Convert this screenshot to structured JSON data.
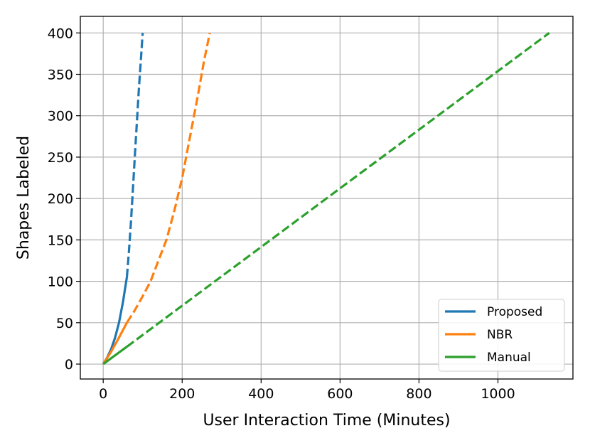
{
  "chart_data": {
    "type": "line",
    "xlabel": "User Interaction Time (Minutes)",
    "ylabel": "Shapes Labeled",
    "xlim": [
      -58,
      1190
    ],
    "ylim": [
      -18,
      420
    ],
    "xticks": [
      0,
      200,
      400,
      600,
      800,
      1000
    ],
    "yticks": [
      0,
      50,
      100,
      150,
      200,
      250,
      300,
      350,
      400
    ],
    "x_tick_labels": [
      "0",
      "200",
      "400",
      "600",
      "800",
      "1000"
    ],
    "y_tick_labels": [
      "0",
      "50",
      "100",
      "150",
      "200",
      "250",
      "300",
      "350",
      "400"
    ],
    "grid": true,
    "legend_position": "lower-right",
    "series": [
      {
        "name": "Proposed",
        "color": "#1f77b4",
        "segments": [
          {
            "style": "solid",
            "x": [
              0,
              10,
              20,
              30,
              40,
              50,
              55,
              60
            ],
            "y": [
              0,
              8,
              18,
              32,
              50,
              75,
              90,
              105
            ]
          },
          {
            "style": "dashed",
            "x": [
              60,
              65,
              70,
              75,
              80,
              85,
              90,
              95,
              100
            ],
            "y": [
              105,
              135,
              170,
              210,
              250,
              290,
              330,
              365,
              400
            ]
          }
        ]
      },
      {
        "name": "NBR",
        "color": "#ff7f0e",
        "segments": [
          {
            "style": "solid",
            "x": [
              0,
              20,
              40,
              60
            ],
            "y": [
              0,
              15,
              32,
              50
            ]
          },
          {
            "style": "dashed",
            "x": [
              60,
              80,
              100,
              120,
              140,
              160,
              180,
              200,
              220,
              240,
              255,
              270
            ],
            "y": [
              50,
              65,
              82,
              100,
              125,
              150,
              185,
              225,
              275,
              325,
              365,
              400
            ]
          }
        ]
      },
      {
        "name": "Manual",
        "color": "#2ca02c",
        "segments": [
          {
            "style": "solid",
            "x": [
              0,
              60
            ],
            "y": [
              0,
              21
            ]
          },
          {
            "style": "dashed",
            "x": [
              60,
              1130
            ],
            "y": [
              21,
              400
            ]
          }
        ]
      }
    ]
  }
}
